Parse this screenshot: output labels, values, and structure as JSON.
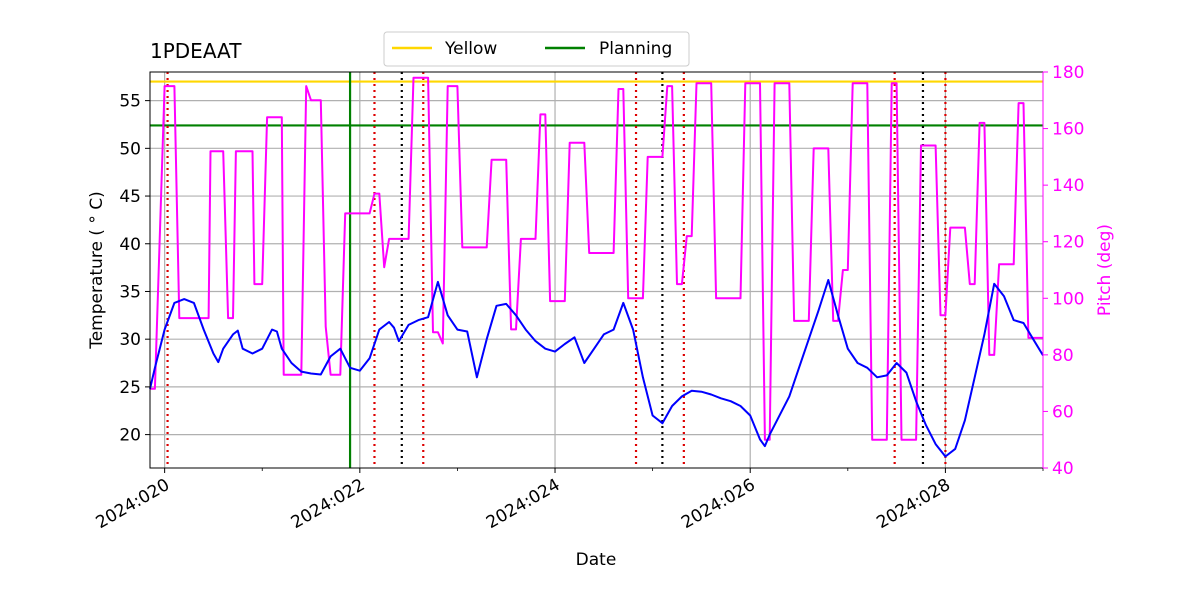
{
  "chart_data": {
    "type": "line",
    "title": "1PDEAAT",
    "xlabel": "Date",
    "ylabel": "Temperature ($^\\circ$C)",
    "ylabel_display": "Temperature ( ° C)",
    "y2label": "Pitch (deg)",
    "xlim": [
      2024.01985,
      2024.029
    ],
    "ylim": [
      16.5,
      58.0
    ],
    "y2lim": [
      40,
      180
    ],
    "x_ticks": [
      {
        "value": 2024.02,
        "label": "2024:020"
      },
      {
        "value": 2024.022,
        "label": "2024:022"
      },
      {
        "value": 2024.024,
        "label": "2024:024"
      },
      {
        "value": 2024.026,
        "label": "2024:026"
      },
      {
        "value": 2024.028,
        "label": "2024:028"
      }
    ],
    "y_ticks": [
      20,
      25,
      30,
      35,
      40,
      45,
      50,
      55
    ],
    "y2_ticks": [
      40,
      60,
      80,
      100,
      120,
      140,
      160,
      180
    ],
    "grid": true,
    "legend": {
      "position": "top-center",
      "entries": [
        {
          "label": "Yellow",
          "color": "#ffd700"
        },
        {
          "label": "Planning",
          "color": "#008000"
        }
      ]
    },
    "colors": {
      "temperature": "#0000ff",
      "pitch": "#ff00ff",
      "yellow": "#ffd700",
      "planning": "#008000",
      "red_lines": "#dd0000",
      "black_lines": "#000000"
    },
    "limit_lines": [
      {
        "name": "Yellow",
        "value": 57.0
      },
      {
        "name": "Planning",
        "value": 52.4
      }
    ],
    "planning_vline": 2024.0219,
    "red_vlines": [
      2024.02003,
      2024.02215,
      2024.02265,
      2024.02483,
      2024.02532,
      2024.02748,
      2024.028
    ],
    "black_vlines": [
      2024.02243,
      2024.0251,
      2024.02777
    ],
    "series": [
      {
        "name": "Temperature",
        "axis": "left",
        "points": [
          [
            2024.01985,
            24.8
          ],
          [
            2024.0199,
            27.0
          ],
          [
            2024.02,
            31.0
          ],
          [
            2024.0201,
            33.8
          ],
          [
            2024.0202,
            34.2
          ],
          [
            2024.0203,
            33.8
          ],
          [
            2024.0204,
            31.0
          ],
          [
            2024.0205,
            28.5
          ],
          [
            2024.02055,
            27.6
          ],
          [
            2024.0206,
            29.0
          ],
          [
            2024.0207,
            30.5
          ],
          [
            2024.02075,
            30.9
          ],
          [
            2024.0208,
            29.0
          ],
          [
            2024.0209,
            28.5
          ],
          [
            2024.021,
            29.0
          ],
          [
            2024.0211,
            31.0
          ],
          [
            2024.02115,
            30.8
          ],
          [
            2024.0212,
            29.0
          ],
          [
            2024.0213,
            27.5
          ],
          [
            2024.0214,
            26.6
          ],
          [
            2024.0215,
            26.4
          ],
          [
            2024.0216,
            26.3
          ],
          [
            2024.0217,
            28.2
          ],
          [
            2024.0218,
            29.0
          ],
          [
            2024.02185,
            28.0
          ],
          [
            2024.0219,
            27.0
          ],
          [
            2024.022,
            26.7
          ],
          [
            2024.0221,
            28.0
          ],
          [
            2024.0222,
            31.0
          ],
          [
            2024.0223,
            31.8
          ],
          [
            2024.02235,
            31.2
          ],
          [
            2024.0224,
            29.8
          ],
          [
            2024.0225,
            31.5
          ],
          [
            2024.0226,
            32.0
          ],
          [
            2024.0227,
            32.3
          ],
          [
            2024.0228,
            36.0
          ],
          [
            2024.0229,
            32.5
          ],
          [
            2024.023,
            31.0
          ],
          [
            2024.0231,
            30.8
          ],
          [
            2024.0232,
            26.0
          ],
          [
            2024.0233,
            30.0
          ],
          [
            2024.0234,
            33.5
          ],
          [
            2024.0235,
            33.7
          ],
          [
            2024.0236,
            32.5
          ],
          [
            2024.0237,
            31.0
          ],
          [
            2024.0238,
            29.8
          ],
          [
            2024.0239,
            29.0
          ],
          [
            2024.024,
            28.7
          ],
          [
            2024.0241,
            29.5
          ],
          [
            2024.0242,
            30.2
          ],
          [
            2024.0243,
            27.5
          ],
          [
            2024.0244,
            29.0
          ],
          [
            2024.0245,
            30.5
          ],
          [
            2024.0246,
            31.0
          ],
          [
            2024.0247,
            33.8
          ],
          [
            2024.0248,
            31.0
          ],
          [
            2024.0249,
            26.0
          ],
          [
            2024.025,
            22.0
          ],
          [
            2024.0251,
            21.2
          ],
          [
            2024.0252,
            23.0
          ],
          [
            2024.0253,
            24.0
          ],
          [
            2024.0254,
            24.6
          ],
          [
            2024.0255,
            24.5
          ],
          [
            2024.0256,
            24.2
          ],
          [
            2024.0257,
            23.8
          ],
          [
            2024.0258,
            23.5
          ],
          [
            2024.0259,
            23.0
          ],
          [
            2024.026,
            22.0
          ],
          [
            2024.0261,
            19.5
          ],
          [
            2024.02615,
            18.8
          ],
          [
            2024.0262,
            20.0
          ],
          [
            2024.0264,
            24.0
          ],
          [
            2024.0265,
            27.0
          ],
          [
            2024.0267,
            33.0
          ],
          [
            2024.0268,
            36.2
          ],
          [
            2024.0269,
            32.5
          ],
          [
            2024.027,
            29.0
          ],
          [
            2024.0271,
            27.5
          ],
          [
            2024.0272,
            27.0
          ],
          [
            2024.0273,
            26.0
          ],
          [
            2024.0274,
            26.2
          ],
          [
            2024.0275,
            27.5
          ],
          [
            2024.0276,
            26.5
          ],
          [
            2024.0277,
            23.5
          ],
          [
            2024.0278,
            21.0
          ],
          [
            2024.0279,
            19.0
          ],
          [
            2024.028,
            17.7
          ],
          [
            2024.0281,
            18.5
          ],
          [
            2024.0282,
            21.5
          ],
          [
            2024.0283,
            26.0
          ],
          [
            2024.0284,
            30.5
          ],
          [
            2024.0285,
            35.8
          ],
          [
            2024.0286,
            34.5
          ],
          [
            2024.0287,
            32.0
          ],
          [
            2024.0288,
            31.7
          ],
          [
            2024.0289,
            30.0
          ],
          [
            2024.029,
            28.3
          ]
        ]
      },
      {
        "name": "Pitch",
        "axis": "right",
        "points": [
          [
            2024.01985,
            68
          ],
          [
            2024.0199,
            68
          ],
          [
            2024.02,
            175
          ],
          [
            2024.0201,
            175
          ],
          [
            2024.02015,
            93
          ],
          [
            2024.0202,
            93
          ],
          [
            2024.0203,
            93
          ],
          [
            2024.02045,
            93
          ],
          [
            2024.02047,
            152
          ],
          [
            2024.0206,
            152
          ],
          [
            2024.02065,
            93
          ],
          [
            2024.0207,
            93
          ],
          [
            2024.02073,
            152
          ],
          [
            2024.0209,
            152
          ],
          [
            2024.02092,
            105
          ],
          [
            2024.021,
            105
          ],
          [
            2024.02105,
            164
          ],
          [
            2024.0212,
            164
          ],
          [
            2024.02122,
            73
          ],
          [
            2024.0214,
            73
          ],
          [
            2024.02145,
            175
          ],
          [
            2024.0215,
            170
          ],
          [
            2024.0216,
            170
          ],
          [
            2024.02165,
            90
          ],
          [
            2024.0217,
            73
          ],
          [
            2024.0218,
            73
          ],
          [
            2024.02185,
            130
          ],
          [
            2024.022,
            130
          ],
          [
            2024.0221,
            130
          ],
          [
            2024.02215,
            137
          ],
          [
            2024.0222,
            137
          ],
          [
            2024.02225,
            111
          ],
          [
            2024.0223,
            121
          ],
          [
            2024.0225,
            121
          ],
          [
            2024.02255,
            178
          ],
          [
            2024.0227,
            178
          ],
          [
            2024.02275,
            88
          ],
          [
            2024.0228,
            88
          ],
          [
            2024.02285,
            84
          ],
          [
            2024.0229,
            175
          ],
          [
            2024.023,
            175
          ],
          [
            2024.02305,
            118
          ],
          [
            2024.0232,
            118
          ],
          [
            2024.0233,
            118
          ],
          [
            2024.02335,
            149
          ],
          [
            2024.0235,
            149
          ],
          [
            2024.02355,
            89
          ],
          [
            2024.0236,
            89
          ],
          [
            2024.02365,
            121
          ],
          [
            2024.0238,
            121
          ],
          [
            2024.02385,
            165
          ],
          [
            2024.0239,
            165
          ],
          [
            2024.02395,
            99
          ],
          [
            2024.0241,
            99
          ],
          [
            2024.02415,
            155
          ],
          [
            2024.0243,
            155
          ],
          [
            2024.02435,
            116
          ],
          [
            2024.0246,
            116
          ],
          [
            2024.02465,
            174
          ],
          [
            2024.0247,
            174
          ],
          [
            2024.02475,
            100
          ],
          [
            2024.0249,
            100
          ],
          [
            2024.02495,
            150
          ],
          [
            2024.025,
            150
          ],
          [
            2024.0251,
            150
          ],
          [
            2024.02515,
            175
          ],
          [
            2024.0252,
            175
          ],
          [
            2024.02525,
            105
          ],
          [
            2024.0253,
            105
          ],
          [
            2024.02535,
            122
          ],
          [
            2024.0254,
            122
          ],
          [
            2024.02545,
            176
          ],
          [
            2024.0256,
            176
          ],
          [
            2024.02565,
            100
          ],
          [
            2024.0259,
            100
          ],
          [
            2024.02595,
            176
          ],
          [
            2024.0261,
            176
          ],
          [
            2024.02615,
            50
          ],
          [
            2024.0262,
            50
          ],
          [
            2024.02625,
            176
          ],
          [
            2024.0264,
            176
          ],
          [
            2024.02645,
            92
          ],
          [
            2024.0266,
            92
          ],
          [
            2024.02665,
            153
          ],
          [
            2024.0268,
            153
          ],
          [
            2024.02685,
            92
          ],
          [
            2024.0269,
            92
          ],
          [
            2024.02695,
            110
          ],
          [
            2024.027,
            110
          ],
          [
            2024.02705,
            176
          ],
          [
            2024.0272,
            176
          ],
          [
            2024.02725,
            50
          ],
          [
            2024.0274,
            50
          ],
          [
            2024.02745,
            176
          ],
          [
            2024.0275,
            176
          ],
          [
            2024.02755,
            50
          ],
          [
            2024.0277,
            50
          ],
          [
            2024.02775,
            154
          ],
          [
            2024.0279,
            154
          ],
          [
            2024.02795,
            94
          ],
          [
            2024.028,
            94
          ],
          [
            2024.02805,
            125
          ],
          [
            2024.0282,
            125
          ],
          [
            2024.02825,
            105
          ],
          [
            2024.0283,
            105
          ],
          [
            2024.02835,
            162
          ],
          [
            2024.0284,
            162
          ],
          [
            2024.02845,
            80
          ],
          [
            2024.0285,
            80
          ],
          [
            2024.02855,
            112
          ],
          [
            2024.0287,
            112
          ],
          [
            2024.02875,
            169
          ],
          [
            2024.0288,
            169
          ],
          [
            2024.02885,
            86
          ],
          [
            2024.0289,
            86
          ],
          [
            2024.029,
            86
          ]
        ]
      }
    ]
  }
}
